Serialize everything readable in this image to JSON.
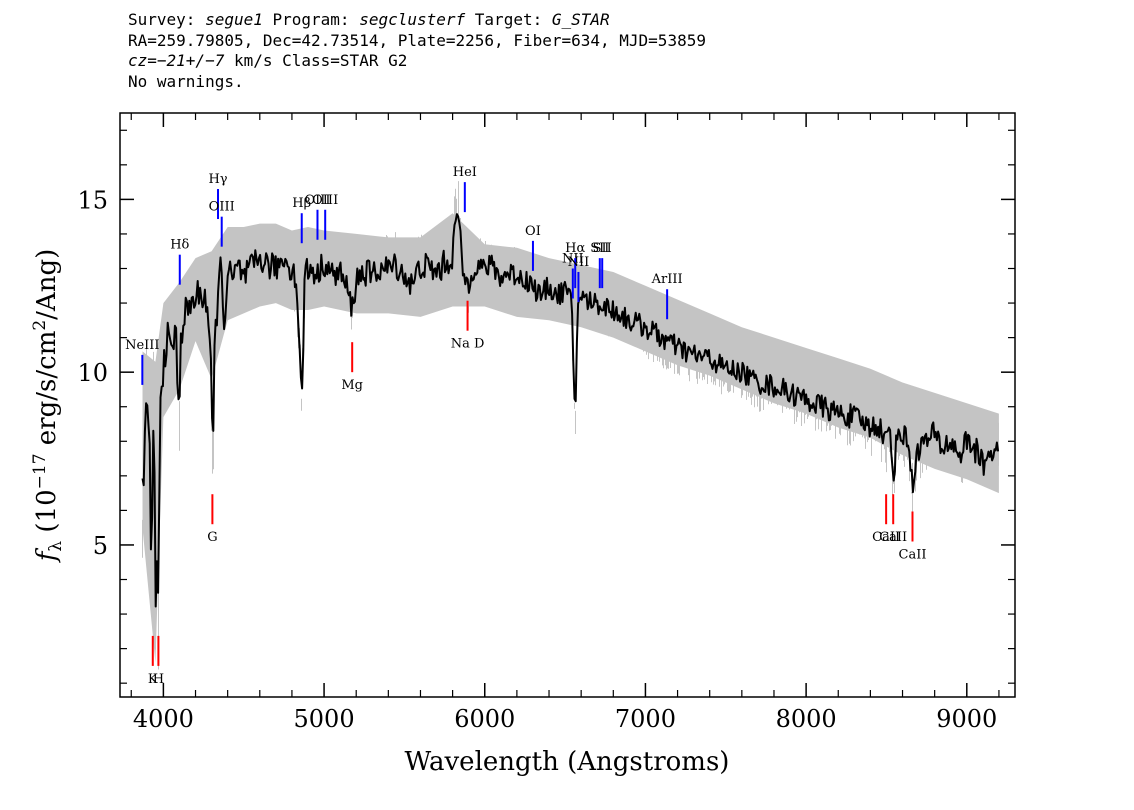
{
  "header": {
    "line1": {
      "survey_label": "Survey: ",
      "survey": "segue1",
      "program_label": " Program: ",
      "program": "segclusterf",
      "target_label": " Target: ",
      "target": "G_STAR"
    },
    "line2": "RA=259.79805, Dec=42.73514, Plate=2256, Fiber=634, MJD=53859",
    "line3": {
      "cz": "cz=−21+/−7",
      "rest": " km/s Class=STAR G2"
    },
    "line4": "No warnings."
  },
  "chart_data": {
    "type": "line",
    "xlabel": "Wavelength (Angstroms)",
    "ylabel": {
      "symbol": "f",
      "subscript": "λ",
      "text1": " (10",
      "exponent": "−17",
      "text2": " erg/s/cm",
      "exponent2": "2",
      "text3": "/Ang)"
    },
    "xlim": [
      3730,
      9300
    ],
    "ylim": [
      0.6,
      17.5
    ],
    "x_ticks": [
      4000,
      5000,
      6000,
      7000,
      8000,
      9000
    ],
    "x_tick_labels": [
      "4000",
      "5000",
      "6000",
      "7000",
      "8000",
      "9000"
    ],
    "y_ticks": [
      5,
      10,
      15
    ],
    "y_tick_labels": [
      "5",
      "10",
      "15"
    ],
    "x_minor_step": 200,
    "y_minor_step": 1,
    "colors": {
      "flux": "#000000",
      "error_band": "#c4c4c4",
      "emission": "#0000ff",
      "absorption": "#ff0000"
    },
    "series": [
      {
        "role": "smoothed flux",
        "x": [
          3870,
          3890,
          3910,
          3925,
          3935,
          3945,
          3955,
          3962,
          3968,
          3975,
          3985,
          4000,
          4020,
          4040,
          4060,
          4080,
          4100,
          4102,
          4110,
          4130,
          4150,
          4180,
          4210,
          4240,
          4270,
          4290,
          4300,
          4308,
          4315,
          4330,
          4345,
          4360,
          4380,
          4400,
          4430,
          4470,
          4500,
          4550,
          4600,
          4650,
          4700,
          4750,
          4800,
          4830,
          4861,
          4880,
          4920,
          4960,
          5000,
          5050,
          5100,
          5150,
          5175,
          5200,
          5250,
          5300,
          5350,
          5400,
          5450,
          5500,
          5550,
          5600,
          5650,
          5700,
          5750,
          5800,
          5830,
          5860,
          5893,
          5920,
          5950,
          6000,
          6050,
          6100,
          6150,
          6200,
          6250,
          6300,
          6350,
          6400,
          6450,
          6500,
          6540,
          6563,
          6580,
          6620,
          6700,
          6800,
          6900,
          7000,
          7100,
          7200,
          7300,
          7400,
          7500,
          7600,
          7700,
          7800,
          7900,
          8000,
          8100,
          8200,
          8300,
          8400,
          8450,
          8498,
          8520,
          8542,
          8570,
          8600,
          8640,
          8662,
          8690,
          8750,
          8800,
          8850,
          8900,
          8950,
          9000,
          9050,
          9100,
          9150,
          9200
        ],
        "y": [
          6.4,
          8.5,
          7.8,
          5.3,
          8.0,
          6.0,
          2.3,
          5.0,
          3.5,
          6.5,
          9.5,
          10.3,
          11.0,
          10.6,
          11.0,
          10.9,
          8.0,
          10.2,
          11.2,
          11.6,
          11.8,
          12.0,
          12.2,
          12.3,
          12.1,
          10.8,
          9.0,
          7.0,
          10.0,
          11.8,
          12.5,
          13.0,
          11.5,
          12.8,
          12.7,
          13.0,
          12.7,
          13.0,
          13.3,
          13.1,
          13.0,
          13.3,
          13.0,
          12.6,
          9.0,
          12.9,
          13.0,
          12.8,
          13.2,
          12.8,
          12.9,
          12.3,
          11.8,
          12.7,
          12.9,
          12.8,
          13.0,
          13.0,
          13.1,
          12.8,
          12.5,
          13.1,
          13.0,
          12.9,
          13.1,
          13.4,
          14.8,
          13.0,
          12.5,
          13.0,
          13.1,
          13.0,
          13.1,
          12.7,
          12.9,
          12.8,
          12.7,
          12.5,
          12.2,
          12.5,
          12.2,
          12.4,
          12.0,
          8.6,
          12.2,
          12.1,
          12.0,
          11.8,
          11.5,
          11.3,
          11.0,
          10.7,
          10.5,
          10.4,
          10.1,
          10.0,
          9.7,
          9.6,
          9.4,
          9.2,
          9.0,
          8.8,
          8.7,
          8.4,
          8.5,
          8.0,
          8.4,
          7.0,
          8.3,
          8.2,
          8.0,
          6.5,
          7.8,
          8.0,
          8.2,
          7.8,
          8.0,
          7.6,
          8.0,
          7.8,
          7.3,
          7.8,
          7.5
        ]
      },
      {
        "role": "noise envelope",
        "x": [
          3870,
          3950,
          4000,
          4100,
          4200,
          4300,
          4400,
          4500,
          4600,
          4700,
          4800,
          4900,
          5000,
          5200,
          5400,
          5600,
          5800,
          6000,
          6200,
          6400,
          6600,
          6800,
          7000,
          7200,
          7400,
          7600,
          7800,
          8000,
          8200,
          8400,
          8600,
          8800,
          9000,
          9200
        ],
        "y_high": [
          10.6,
          10.3,
          12.0,
          12.6,
          13.3,
          13.5,
          14.2,
          14.2,
          14.3,
          14.3,
          14.1,
          14.2,
          14.1,
          14.0,
          13.9,
          13.9,
          14.6,
          13.7,
          13.6,
          13.3,
          13.1,
          12.9,
          12.5,
          12.1,
          11.7,
          11.3,
          11.0,
          10.7,
          10.4,
          10.1,
          9.7,
          9.4,
          9.1,
          8.8
        ],
        "y_low": [
          5.5,
          1.6,
          8.7,
          9.5,
          10.9,
          9.8,
          11.5,
          11.7,
          11.9,
          12.0,
          11.8,
          11.8,
          11.9,
          11.7,
          11.7,
          11.6,
          11.9,
          11.9,
          11.6,
          11.5,
          11.3,
          11.0,
          10.6,
          10.2,
          9.9,
          9.5,
          9.1,
          8.8,
          8.4,
          8.1,
          7.6,
          7.2,
          6.9,
          6.5
        ]
      }
    ],
    "emission_lines": [
      {
        "label": "NeIII",
        "x": 3869,
        "y": 10.5
      },
      {
        "label": "Hδ",
        "x": 4102,
        "y": 13.4
      },
      {
        "label": "Hγ",
        "x": 4340,
        "y": 15.3
      },
      {
        "label": "OIII",
        "x": 4363,
        "y": 14.5
      },
      {
        "label": "Hβ",
        "x": 4861,
        "y": 14.6
      },
      {
        "label": "OIII",
        "x": 4959,
        "y": 14.7
      },
      {
        "label": "OIII",
        "x": 5007,
        "y": 14.7
      },
      {
        "label": "HeI",
        "x": 5876,
        "y": 15.5
      },
      {
        "label": "OI",
        "x": 6300,
        "y": 13.8
      },
      {
        "label": "NII",
        "x": 6548,
        "y": 13.0
      },
      {
        "label": "Hα",
        "x": 6563,
        "y": 13.3
      },
      {
        "label": "NII",
        "x": 6583,
        "y": 12.9
      },
      {
        "label": "SII",
        "x": 6716,
        "y": 13.3
      },
      {
        "label": "SII",
        "x": 6731,
        "y": 13.3
      },
      {
        "label": "ArIII",
        "x": 7135,
        "y": 12.4
      }
    ],
    "absorption_lines": [
      {
        "label": "K",
        "x": 3934,
        "y": 1.5
      },
      {
        "label": "H",
        "x": 3969,
        "y": 1.5
      },
      {
        "label": "G",
        "x": 4305,
        "y": 5.6
      },
      {
        "label": "Mg",
        "x": 5175,
        "y": 10.0
      },
      {
        "label": "Na D",
        "x": 5893,
        "y": 11.2
      },
      {
        "label": "CaII",
        "x": 8498,
        "y": 5.6
      },
      {
        "label": "CaII",
        "x": 8542,
        "y": 5.6
      },
      {
        "label": "CaII",
        "x": 8662,
        "y": 5.1
      }
    ]
  }
}
